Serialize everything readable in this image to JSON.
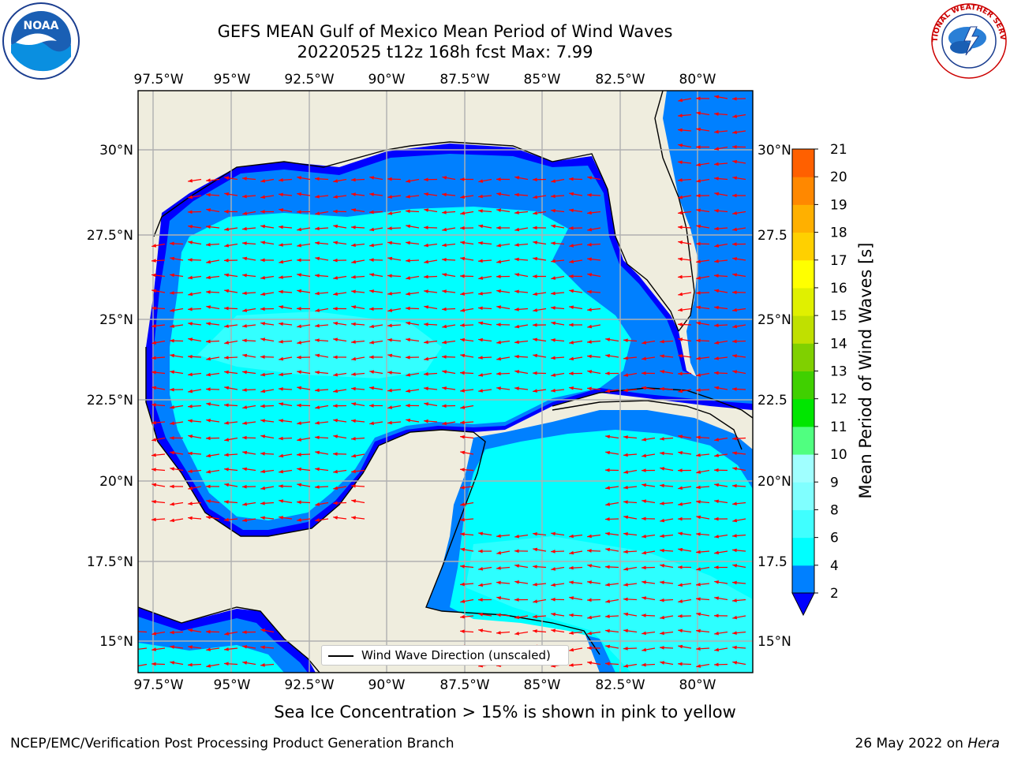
{
  "title_line1": "GEFS MEAN Gulf of Mexico Mean Period of Wind Waves",
  "title_line2": "20220525 t12z 168h fcst   Max: 7.99",
  "lon_ticks": [
    "97.5°W",
    "95°W",
    "92.5°W",
    "90°W",
    "87.5°W",
    "85°W",
    "82.5°W",
    "80°W"
  ],
  "lat_ticks": [
    "30°N",
    "27.5°N",
    "25°N",
    "22.5°N",
    "20°N",
    "17.5°N",
    "15°N"
  ],
  "lat_ticks_right": [
    "30°N",
    "27.5",
    "25°N",
    "22.5",
    "20°N",
    "17.5",
    "15°N"
  ],
  "legend": {
    "label": "Wind Wave Direction (unscaled)"
  },
  "colorbar": {
    "title": "Mean Period of Wind Waves [s]",
    "levels": [
      "2",
      "4",
      "6",
      "8",
      "9",
      "10",
      "11",
      "12",
      "13",
      "14",
      "15",
      "16",
      "17",
      "18",
      "19",
      "20",
      "21"
    ],
    "colors": [
      "#0080ff",
      "#00ffff",
      "#40ffff",
      "#80ffff",
      "#a0ffff",
      "#50ff80",
      "#00e600",
      "#40d000",
      "#80d000",
      "#c0e000",
      "#e0f000",
      "#ffff00",
      "#ffd000",
      "#ffb000",
      "#ff8800",
      "#ff6000",
      "#ff3000",
      "#ff0000"
    ],
    "extend_color": "#0000ff"
  },
  "footnote": "Sea Ice Concentration > 15% is shown in pink to yellow",
  "credit": "NCEP/EMC/Verification Post Processing Product Generation Branch",
  "date_text": "26 May 2022 on ",
  "date_host": "Hera",
  "colors": {
    "land": "#efedde",
    "ocean_low": "#0000ff",
    "ocean_mid": "#0080ff",
    "ocean_high": "#00ffff",
    "ocean_higher": "#40ffff",
    "arrow": "#ff0000",
    "grid": "#b0b0b0"
  },
  "logos": {
    "noaa": "NOAA",
    "nws": "NATIONAL WEATHER SERVICE"
  }
}
